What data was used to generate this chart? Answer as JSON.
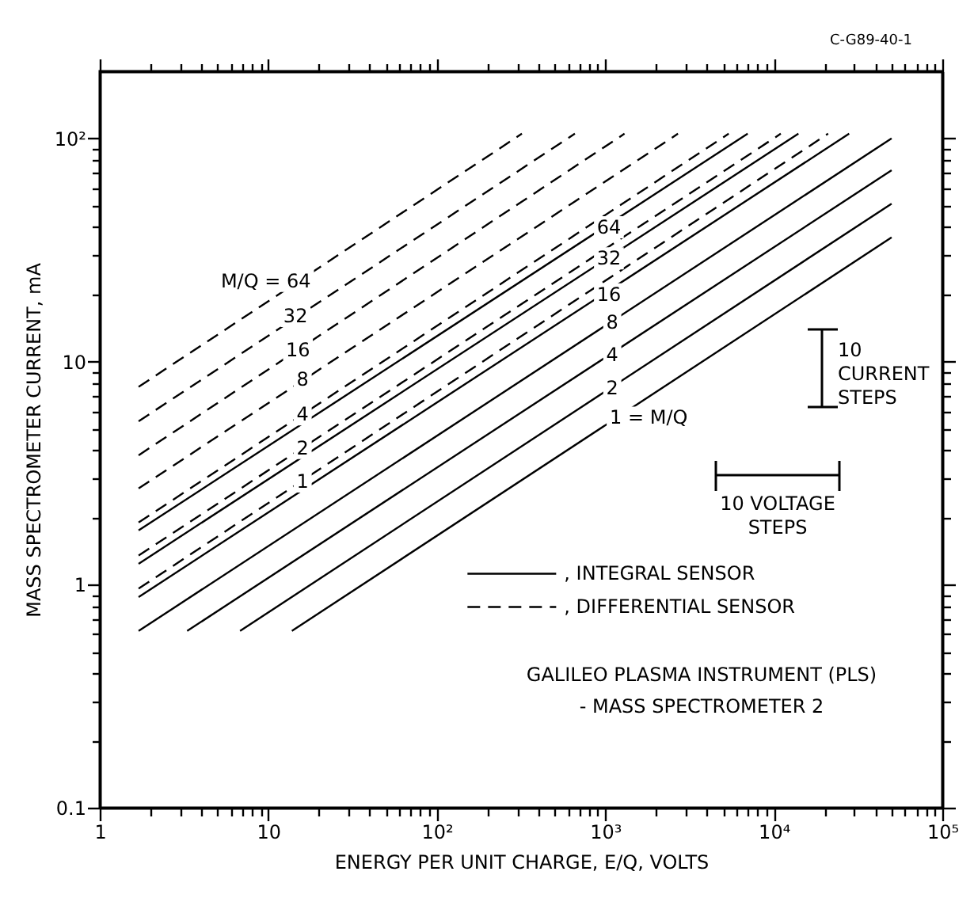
{
  "chart_data": {
    "type": "line",
    "log": "xy",
    "xlabel": "ENERGY PER UNIT CHARGE, E/Q, VOLTS",
    "ylabel": "MASS SPECTROMETER CURRENT, mA",
    "xlim": [
      1,
      100000
    ],
    "ylim": [
      0.1,
      200
    ],
    "xticks": [
      1,
      {
        "value": 2,
        "label": null
      },
      {
        "value": 3,
        "label": null
      },
      {
        "value": 4,
        "label": null
      },
      {
        "value": 5,
        "label": null
      },
      {
        "value": 6,
        "label": null
      },
      {
        "value": 7,
        "label": null
      },
      {
        "value": 8,
        "label": null
      },
      {
        "value": 9,
        "label": null
      },
      10,
      {
        "value": 20,
        "label": null
      },
      {
        "value": 30,
        "label": null
      },
      {
        "value": 40,
        "label": null
      },
      {
        "value": 50,
        "label": null
      },
      {
        "value": 60,
        "label": null
      },
      {
        "value": 70,
        "label": null
      },
      {
        "value": 80,
        "label": null
      },
      {
        "value": 90,
        "label": null
      },
      {
        "value": 100,
        "label": "10²"
      },
      {
        "value": 200,
        "label": null
      },
      {
        "value": 300,
        "label": null
      },
      {
        "value": 400,
        "label": null
      },
      {
        "value": 500,
        "label": null
      },
      {
        "value": 600,
        "label": null
      },
      {
        "value": 700,
        "label": null
      },
      {
        "value": 800,
        "label": null
      },
      {
        "value": 900,
        "label": null
      },
      {
        "value": 1000,
        "label": "10³"
      },
      {
        "value": 2000,
        "label": null
      },
      {
        "value": 3000,
        "label": null
      },
      {
        "value": 4000,
        "label": null
      },
      {
        "value": 5000,
        "label": null
      },
      {
        "value": 6000,
        "label": null
      },
      {
        "value": 7000,
        "label": null
      },
      {
        "value": 8000,
        "label": null
      },
      {
        "value": 9000,
        "label": null
      },
      {
        "value": 10000,
        "label": "10⁴"
      },
      {
        "value": 20000,
        "label": null
      },
      {
        "value": 30000,
        "label": null
      },
      {
        "value": 40000,
        "label": null
      },
      {
        "value": 50000,
        "label": null
      },
      {
        "value": 60000,
        "label": null
      },
      {
        "value": 70000,
        "label": null
      },
      {
        "value": 80000,
        "label": null
      },
      {
        "value": 90000,
        "label": null
      },
      {
        "value": 100000,
        "label": "10⁵"
      }
    ],
    "yticks": [
      0.1,
      {
        "value": 0.2,
        "label": null
      },
      {
        "value": 0.3,
        "label": null
      },
      {
        "value": 0.4,
        "label": null
      },
      {
        "value": 0.5,
        "label": null
      },
      {
        "value": 0.6,
        "label": null
      },
      {
        "value": 0.7,
        "label": null
      },
      {
        "value": 0.8,
        "label": null
      },
      {
        "value": 0.9,
        "label": null
      },
      1,
      {
        "value": 2,
        "label": null
      },
      {
        "value": 3,
        "label": null
      },
      {
        "value": 4,
        "label": null
      },
      {
        "value": 5,
        "label": null
      },
      {
        "value": 6,
        "label": null
      },
      {
        "value": 7,
        "label": null
      },
      {
        "value": 8,
        "label": null
      },
      {
        "value": 9,
        "label": null
      },
      10,
      {
        "value": 20,
        "label": null
      },
      {
        "value": 30,
        "label": null
      },
      {
        "value": 40,
        "label": null
      },
      {
        "value": 50,
        "label": null
      },
      {
        "value": 60,
        "label": null
      },
      {
        "value": 70,
        "label": null
      },
      {
        "value": 80,
        "label": null
      },
      {
        "value": 90,
        "label": null
      },
      {
        "value": 100,
        "label": "10²"
      }
    ],
    "legend": "right",
    "series": [
      {
        "name": ", INTEGRAL SENSOR",
        "color": "#000000",
        "line_style": "solid",
        "x": [
          1.7,
          7000
        ],
        "values": [
          1.75,
          105
        ]
      },
      {
        "color": "#000000",
        "line_style": "solid",
        "x": [
          1.7,
          14000
        ],
        "values": [
          1.24,
          105
        ]
      },
      {
        "color": "#000000",
        "line_style": "solid",
        "x": [
          1.7,
          28000
        ],
        "values": [
          0.88,
          105
        ]
      },
      {
        "color": "#000000",
        "line_style": "solid",
        "x": [
          1.7,
          50000
        ],
        "values": [
          0.62,
          100
        ]
      },
      {
        "color": "#000000",
        "line_style": "solid",
        "x": [
          3.3,
          50000
        ],
        "values": [
          0.62,
          72
        ]
      },
      {
        "color": "#000000",
        "line_style": "solid",
        "x": [
          6.8,
          50000
        ],
        "values": [
          0.62,
          51
        ]
      },
      {
        "color": "#000000",
        "line_style": "solid",
        "x": [
          13.8,
          50000
        ],
        "values": [
          0.62,
          36
        ]
      },
      {
        "name": ", DIFFERENTIAL SENSOR",
        "color": "#000000",
        "line_style": "dashed",
        "x": [
          1.7,
          320
        ],
        "values": [
          7.7,
          105
        ]
      },
      {
        "color": "#000000",
        "line_style": "dashed",
        "x": [
          1.7,
          660
        ],
        "values": [
          5.4,
          105
        ]
      },
      {
        "color": "#000000",
        "line_style": "dashed",
        "x": [
          1.7,
          1300
        ],
        "values": [
          3.8,
          105
        ]
      },
      {
        "color": "#000000",
        "line_style": "dashed",
        "x": [
          1.7,
          2700
        ],
        "values": [
          2.7,
          105
        ]
      },
      {
        "color": "#000000",
        "line_style": "dashed",
        "x": [
          1.7,
          5400
        ],
        "values": [
          1.9,
          105
        ]
      },
      {
        "color": "#000000",
        "line_style": "dashed",
        "x": [
          1.7,
          11000
        ],
        "values": [
          1.35,
          105
        ]
      },
      {
        "color": "#000000",
        "line_style": "dashed",
        "x": [
          1.7,
          21000
        ],
        "values": [
          0.96,
          105
        ]
      }
    ],
    "annotations": [
      "C-G89-40-1",
      {
        "text": "M/Q = 64",
        "x": 15.7,
        "y": 23
      },
      {
        "text": "32",
        "x": 14.5,
        "y": 16
      },
      {
        "text": "16",
        "x": 15,
        "y": 11.3
      },
      {
        "text": "8",
        "x": 16,
        "y": 8.3
      },
      {
        "text": "4",
        "x": 16,
        "y": 5.8
      },
      {
        "text": "2",
        "x": 16,
        "y": 4.1
      },
      {
        "text": "1",
        "x": 16,
        "y": 2.9
      },
      {
        "text": "64",
        "x": 1050,
        "y": 40
      },
      {
        "text": "32",
        "x": 1050,
        "y": 29
      },
      {
        "text": "16",
        "x": 1050,
        "y": 20
      },
      {
        "text": "8",
        "x": 1100,
        "y": 15
      },
      {
        "text": "4",
        "x": 1100,
        "y": 10.7
      },
      {
        "text": "2",
        "x": 1100,
        "y": 7.6
      },
      {
        "text": "1 = M/Q",
        "x": 1160,
        "y": 5.6
      },
      "10\nCURRENT\nSTEPS",
      "10 VOLTAGE\nSTEPS",
      "GALILEO PLASMA INSTRUMENT (PLS)\n- MASS SPECTROMETER 2"
    ]
  }
}
